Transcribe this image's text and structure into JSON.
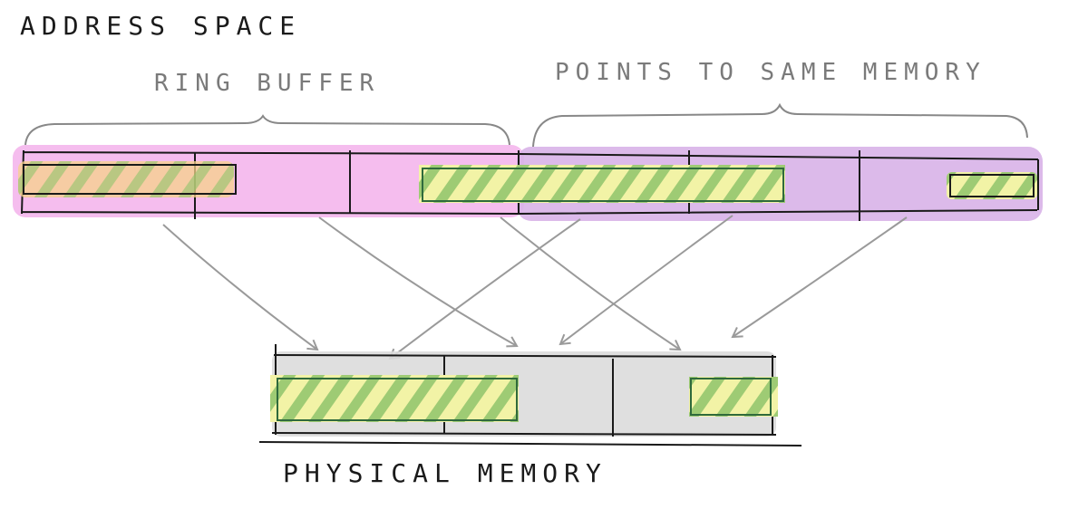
{
  "labels": {
    "address_space": "ADDRESS SPACE",
    "ring_buffer": "RING BUFFER",
    "points_to_same_memory": "POINTS TO SAME MEMORY",
    "physical_memory": "PHYSICAL MEMORY"
  },
  "colors": {
    "ink": "#1a1a1a",
    "ring_buffer_fill": "#f4b6ec",
    "mirror_fill": "#d8b2e8",
    "physical_fill": "#dcdcdc",
    "data_fill": "#f2f3a6",
    "data_hatch": "#93c26e",
    "data_border": "#2f6a3c",
    "arrow": "#9a9a9a",
    "brace": "#888888",
    "label_gray": "#7a7a7a"
  }
}
